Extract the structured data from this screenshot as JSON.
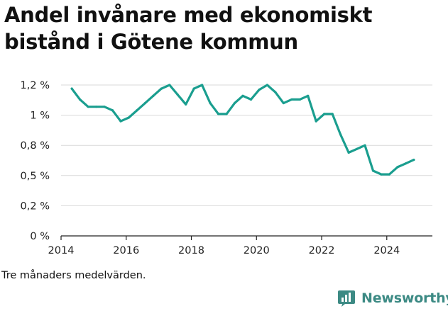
{
  "chart_data": {
    "type": "line",
    "title": "Andel invånare med ekonomiskt bistånd i Götene kommun",
    "footnote": "Tre månaders medelvärden.",
    "xlabel": "",
    "ylabel": "",
    "xlim": [
      2014.0,
      2025.4
    ],
    "ylim": [
      0,
      1.25
    ],
    "x_ticks": [
      2014,
      2016,
      2018,
      2020,
      2022,
      2024
    ],
    "x_tick_labels": [
      "2014",
      "2016",
      "2018",
      "2020",
      "2022",
      "2024"
    ],
    "y_ticks": [
      0,
      0.25,
      0.5,
      0.75,
      1.0,
      1.25
    ],
    "y_tick_labels": [
      "0 %",
      "0,2 %",
      "0,5 %",
      "0,8 %",
      "1 %",
      "1,2 %"
    ],
    "grid": "horizontal",
    "legend": "none",
    "line_color": "#1a9e8f",
    "series": [
      {
        "x": [
          2014.33,
          2014.58,
          2014.83,
          2015.08,
          2015.33,
          2015.58,
          2015.83,
          2016.08,
          2016.33,
          2016.58,
          2016.83,
          2017.08,
          2017.33,
          2017.58,
          2017.83,
          2018.08,
          2018.33,
          2018.58,
          2018.83,
          2019.08,
          2019.33,
          2019.58,
          2019.83,
          2020.08,
          2020.33,
          2020.58,
          2020.83,
          2021.08,
          2021.33,
          2021.58,
          2021.83,
          2022.08,
          2022.33,
          2022.58,
          2022.83,
          2023.08,
          2023.33,
          2023.58,
          2023.83,
          2024.08,
          2024.33,
          2024.58,
          2024.83
        ],
        "values": [
          1.22,
          1.13,
          1.07,
          1.07,
          1.07,
          1.04,
          0.95,
          0.98,
          1.04,
          1.1,
          1.16,
          1.22,
          1.25,
          1.17,
          1.09,
          1.22,
          1.25,
          1.1,
          1.01,
          1.01,
          1.1,
          1.16,
          1.13,
          1.21,
          1.25,
          1.19,
          1.1,
          1.13,
          1.13,
          1.16,
          0.95,
          1.01,
          1.01,
          0.84,
          0.69,
          0.72,
          0.75,
          0.54,
          0.51,
          0.51,
          0.57,
          0.6,
          0.63
        ]
      }
    ]
  },
  "brand": {
    "name": "Newsworthy",
    "icon": "newsworthy-chart-icon",
    "color": "#3c8a84"
  }
}
